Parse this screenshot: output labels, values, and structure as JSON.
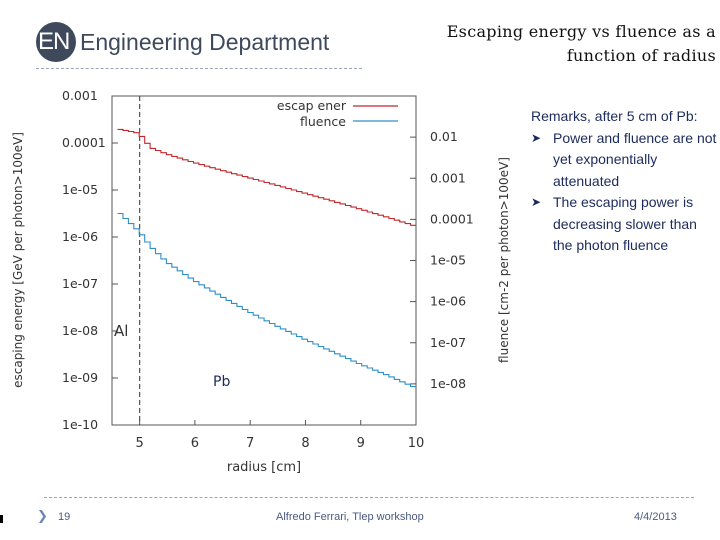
{
  "header": {
    "logo_mark": "EN",
    "logo_text": "Engineering Department",
    "title_line1": "Escaping energy vs fluence as a",
    "title_line2": "function of radius"
  },
  "remarks": {
    "intro": "Remarks, after 5 cm of Pb:",
    "bullets": [
      "Power and fluence are not yet exponentially attenuated",
      "The escaping power is decreasing slower than the photon fluence"
    ]
  },
  "footer": {
    "page": "19",
    "author": "Alfredo Ferrari, Tlep workshop",
    "date": "4/4/2013"
  },
  "colors": {
    "energy": "#c0282d",
    "fluence": "#2f8fc8"
  },
  "chart_data": {
    "type": "line",
    "xlabel": "radius [cm]",
    "ylabel_left": "escaping energy [GeV per photon>100eV]",
    "ylabel_right": "fluence [cm-2 per photon>100eV]",
    "xlim": [
      4.5,
      10
    ],
    "ylim_left": [
      1e-10,
      0.001
    ],
    "ylim_right": [
      1e-09,
      0.1
    ],
    "x_ticks": [
      "5",
      "6",
      "7",
      "8",
      "9",
      "10"
    ],
    "y_ticks_left": [
      "0.001",
      "0.0001",
      "1e-05",
      "1e-06",
      "1e-07",
      "1e-08",
      "1e-09",
      "1e-10"
    ],
    "y_ticks_right": [
      "0.01",
      "0.001",
      "0.0001",
      "1e-05",
      "1e-06",
      "1e-07",
      "1e-08"
    ],
    "legend": [
      "escap ener",
      "fluence"
    ],
    "legend_position": "top-right",
    "annotations": [
      "Al",
      "Pb"
    ],
    "boundary_x": 5,
    "series": [
      {
        "name": "escap ener",
        "axis": "left",
        "x": [
          4.6,
          4.8,
          5.0,
          5.2,
          5.5,
          6.0,
          6.5,
          7.0,
          7.5,
          8.0,
          8.5,
          9.0,
          9.5,
          10.0
        ],
        "values": [
          0.0002,
          0.00018,
          0.00016,
          8e-05,
          5.8e-05,
          3.8e-05,
          2.6e-05,
          1.8e-05,
          1.25e-05,
          8.5e-06,
          5.8e-06,
          3.9e-06,
          2.6e-06,
          1.7e-06
        ]
      },
      {
        "name": "fluence",
        "axis": "right",
        "x": [
          4.6,
          4.8,
          5.0,
          5.2,
          5.5,
          6.0,
          6.5,
          7.0,
          7.5,
          8.0,
          8.5,
          9.0,
          9.5,
          10.0
        ],
        "values": [
          0.00016,
          9e-05,
          5e-05,
          2.2e-05,
          9e-06,
          3.2e-06,
          1.3e-06,
          5.5e-07,
          2.5e-07,
          1.2e-07,
          6e-08,
          3e-08,
          1.6e-08,
          8e-09
        ]
      }
    ]
  }
}
